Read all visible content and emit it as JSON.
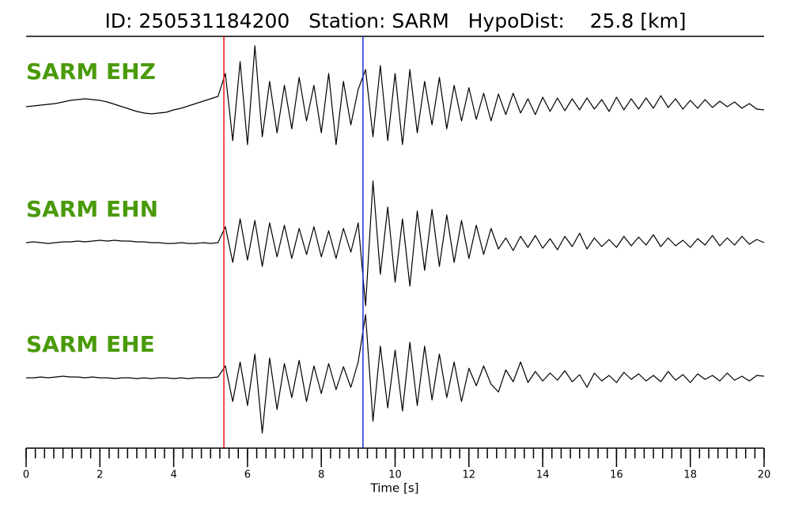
{
  "chart_data": {
    "type": "line",
    "title": "ID: 250531184200   Station: SARM   HypoDist:    25.8 [km]",
    "xlabel": "Time [s]",
    "xlim": [
      0,
      20
    ],
    "xticks": [
      0,
      2,
      4,
      6,
      8,
      10,
      12,
      14,
      16,
      18,
      20
    ],
    "minor_tick_step": 0.25,
    "x": [
      0,
      0.2,
      0.4,
      0.6,
      0.8,
      1,
      1.2,
      1.4,
      1.6,
      1.8,
      2,
      2.2,
      2.4,
      2.6,
      2.8,
      3,
      3.2,
      3.4,
      3.6,
      3.8,
      4,
      4.2,
      4.4,
      4.6,
      4.8,
      5,
      5.2,
      5.4,
      5.6,
      5.8,
      6,
      6.2,
      6.4,
      6.6,
      6.8,
      7,
      7.2,
      7.4,
      7.6,
      7.8,
      8,
      8.2,
      8.4,
      8.6,
      8.8,
      9,
      9.2,
      9.4,
      9.6,
      9.8,
      10,
      10.2,
      10.4,
      10.6,
      10.8,
      11,
      11.2,
      11.4,
      11.6,
      11.8,
      12,
      12.2,
      12.4,
      12.6,
      12.8,
      13,
      13.2,
      13.4,
      13.6,
      13.8,
      14,
      14.2,
      14.4,
      14.6,
      14.8,
      15,
      15.2,
      15.4,
      15.6,
      15.8,
      16,
      16.2,
      16.4,
      16.6,
      16.8,
      17,
      17.2,
      17.4,
      17.6,
      17.8,
      18,
      18.2,
      18.4,
      18.6,
      18.8,
      19,
      19.2,
      19.4,
      19.6,
      19.8,
      20
    ],
    "picks": [
      {
        "x": 5.36,
        "color": "#e8141a"
      },
      {
        "x": 9.13,
        "color": "#1f2fd0"
      }
    ],
    "label_color": "#4a9a0a",
    "series": [
      {
        "name": "SARM EHZ",
        "color": "#000000",
        "ylim": [
          -90,
          90
        ],
        "values": [
          -2,
          -1,
          0,
          1,
          2,
          4,
          6,
          7,
          8,
          7,
          6,
          4,
          1,
          -2,
          -5,
          -8,
          -10,
          -11,
          -10,
          -9,
          -6,
          -4,
          -1,
          2,
          5,
          8,
          11,
          40,
          -45,
          55,
          -50,
          75,
          -40,
          30,
          -35,
          25,
          -30,
          35,
          -20,
          25,
          -35,
          40,
          -50,
          30,
          -25,
          20,
          45,
          -40,
          50,
          -45,
          40,
          -50,
          45,
          -35,
          30,
          -25,
          35,
          -30,
          25,
          -20,
          22,
          -18,
          15,
          -20,
          14,
          -12,
          15,
          -10,
          8,
          -12,
          10,
          -8,
          9,
          -7,
          8,
          -6,
          9,
          -5,
          7,
          -8,
          10,
          -6,
          8,
          -5,
          9,
          -4,
          12,
          -3,
          8,
          -5,
          6,
          -4,
          7,
          -3,
          5,
          -2,
          4,
          -4,
          2,
          -5,
          -6
        ]
      },
      {
        "name": "SARM EHN",
        "color": "#000000",
        "ylim": [
          -90,
          90
        ],
        "values": [
          0,
          1,
          0,
          -1,
          0,
          1,
          1,
          2,
          1,
          2,
          3,
          2,
          3,
          2,
          2,
          1,
          1,
          0,
          0,
          -1,
          -1,
          0,
          -1,
          -1,
          0,
          -1,
          0,
          20,
          -25,
          30,
          -22,
          28,
          -30,
          25,
          -18,
          22,
          -20,
          18,
          -15,
          20,
          -18,
          15,
          -20,
          18,
          -12,
          25,
          -80,
          78,
          -40,
          45,
          -50,
          30,
          -55,
          40,
          -35,
          42,
          -30,
          35,
          -25,
          28,
          -20,
          22,
          -15,
          18,
          -8,
          6,
          -10,
          8,
          -6,
          9,
          -7,
          5,
          -9,
          8,
          -5,
          12,
          -8,
          6,
          -5,
          4,
          -6,
          8,
          -4,
          7,
          -3,
          10,
          -5,
          6,
          -4,
          3,
          -6,
          5,
          -3,
          9,
          -4,
          6,
          -3,
          8,
          -2,
          4,
          0
        ]
      },
      {
        "name": "SARM EHE",
        "color": "#000000",
        "ylim": [
          -90,
          90
        ],
        "values": [
          0,
          0,
          1,
          0,
          1,
          2,
          1,
          1,
          0,
          1,
          0,
          0,
          -1,
          0,
          0,
          -1,
          0,
          -1,
          0,
          0,
          -1,
          0,
          -1,
          0,
          0,
          0,
          1,
          15,
          -30,
          20,
          -35,
          30,
          -70,
          25,
          -40,
          18,
          -25,
          22,
          -30,
          15,
          -20,
          18,
          -15,
          14,
          -12,
          20,
          80,
          -55,
          40,
          -38,
          35,
          -42,
          45,
          -35,
          40,
          -28,
          30,
          -25,
          20,
          -30,
          12,
          -10,
          15,
          -8,
          -18,
          10,
          -5,
          20,
          -6,
          8,
          -4,
          6,
          -3,
          9,
          -5,
          4,
          -12,
          6,
          -4,
          3,
          -6,
          7,
          -2,
          5,
          -4,
          3,
          -5,
          8,
          -3,
          4,
          -6,
          5,
          -2,
          3,
          -4,
          6,
          -3,
          2,
          -4,
          3,
          2
        ]
      }
    ]
  }
}
